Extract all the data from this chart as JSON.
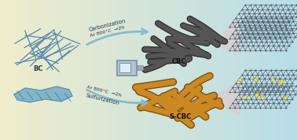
{
  "bg_left_color": "#f0edcc",
  "bg_right_color": "#b8dde8",
  "bc_fiber_color": "#5588aa",
  "cbc_fiber_color": "#555555",
  "scbc_fiber_color": "#cc8822",
  "layer_node_color": "#556677",
  "sulfur_color": "#f5e050",
  "arrow_color": "#77aabb",
  "label_bc": "BC",
  "label_cbc": "CBC",
  "label_scbc": "S-CBC",
  "carb_text1": "Carbonization",
  "carb_text2": "Ar 800°C",
  "carb_text3": "2h",
  "sulf_text1": "Ar 800°C",
  "sulf_text2": "2h",
  "sulf_text3": "Sulfurization",
  "label_fontsize": 6.0,
  "annot_fontsize": 5.0
}
